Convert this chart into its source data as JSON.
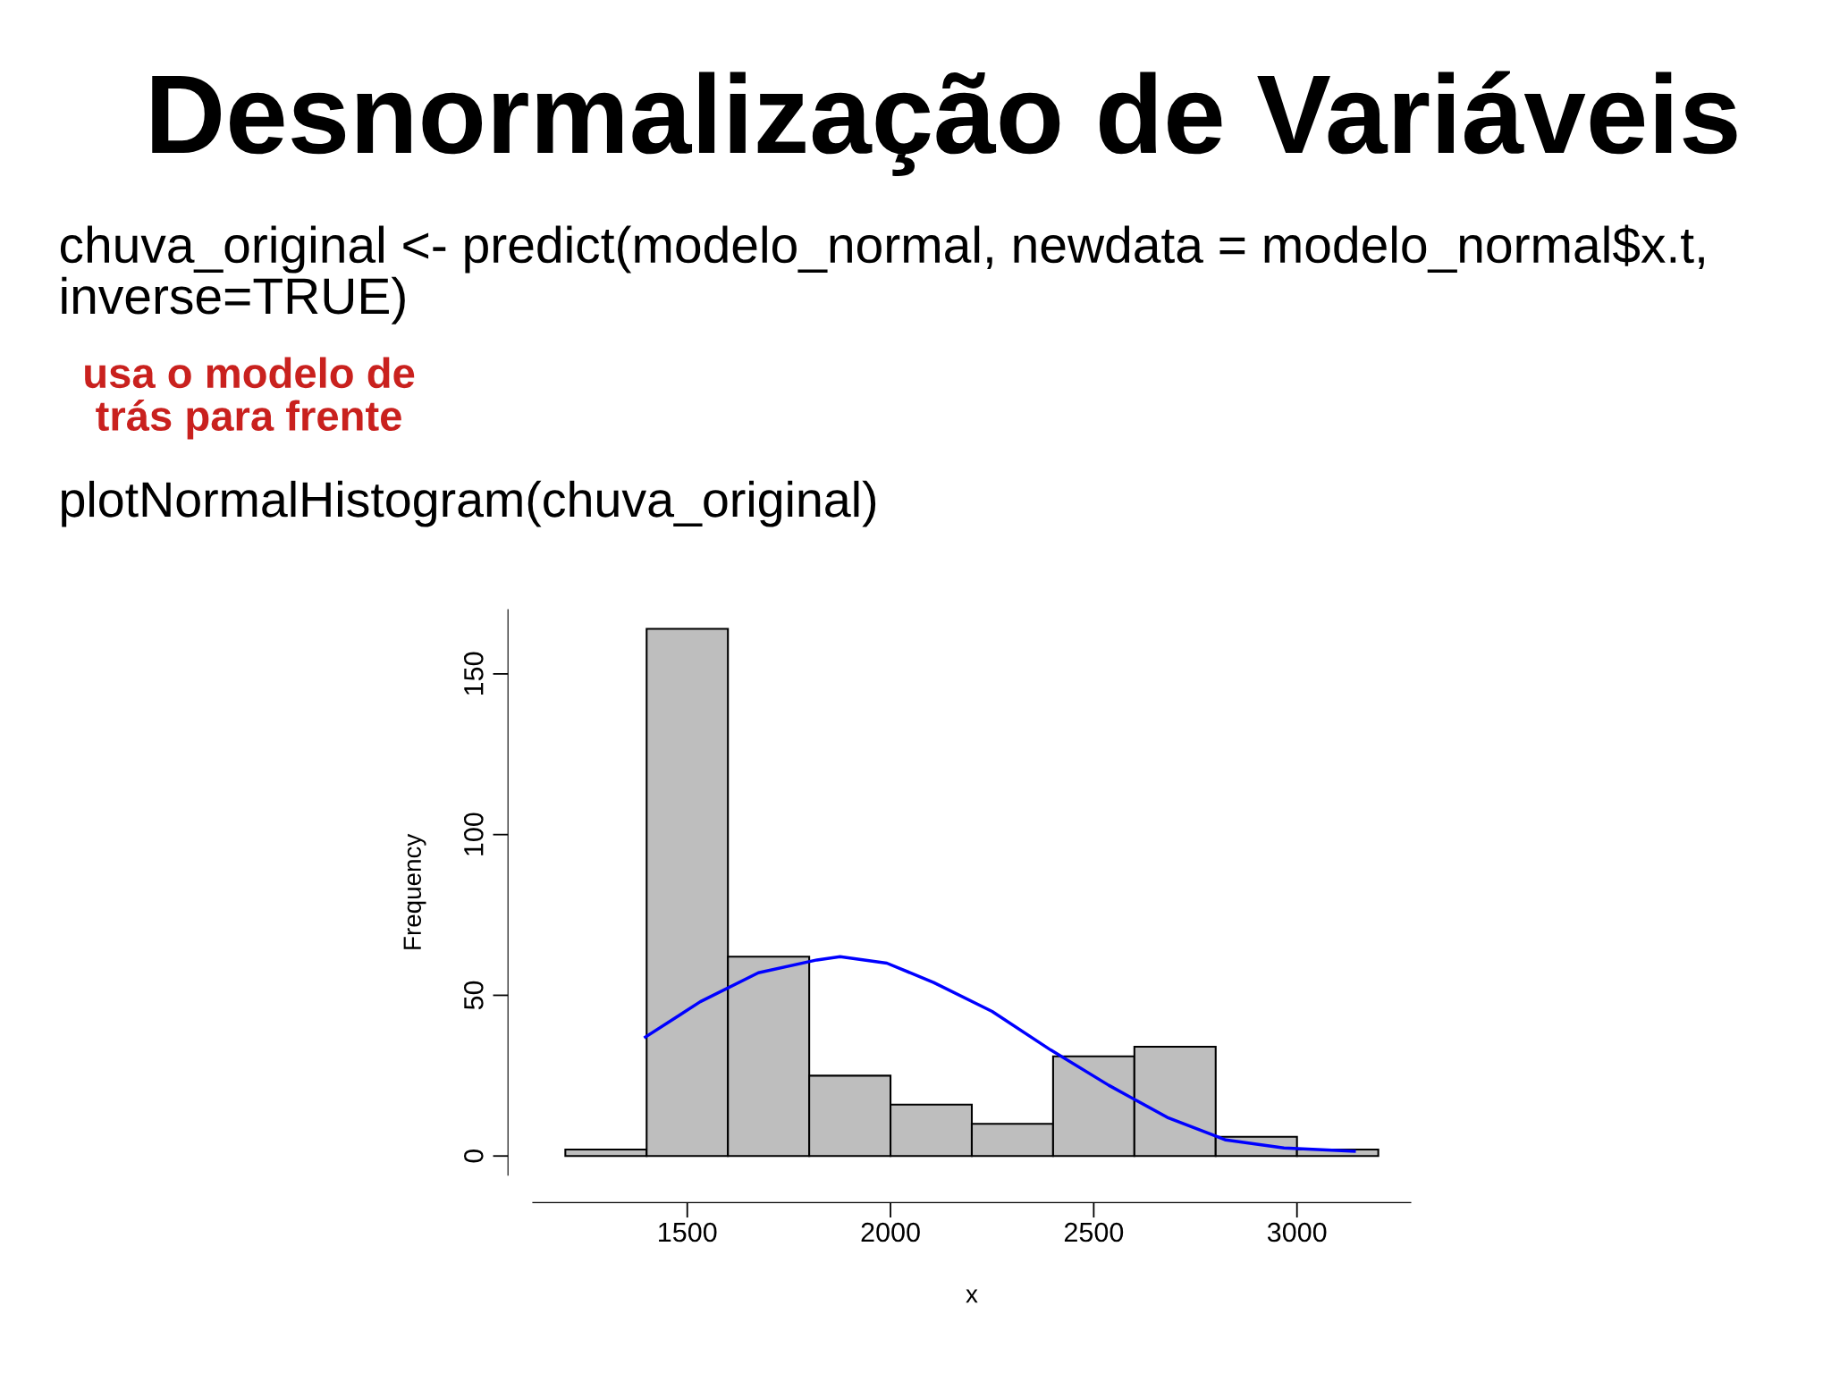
{
  "chart_data": {
    "type": "histogram",
    "title": "Desnormalização de Variáveis",
    "annotations": [
      "chuva_original <- predict(modelo_normal, newdata = modelo_normal$x.t,\ninverse=TRUE)",
      "usa o modelo de\ntrás para frente",
      "plotNormalHistogram(chuva_original)"
    ],
    "xlabel": "x",
    "ylabel": "Frequency",
    "series": [
      {
        "bins": [
          1200,
          1400,
          1600,
          1800,
          2000,
          2200,
          2400,
          2600,
          2800,
          3000,
          3200
        ],
        "values": [
          2,
          164,
          62,
          25,
          16,
          10,
          31,
          34,
          6,
          2
        ],
        "color": "#bebebe"
      },
      {
        "type": "line",
        "x": [
          1397,
          1532,
          1675,
          1819,
          1876,
          1991,
          2106,
          2250,
          2394,
          2537,
          2681,
          2825,
          2968,
          3141
        ],
        "values": [
          37,
          48,
          57,
          61,
          62,
          60,
          54,
          45,
          33,
          22,
          12,
          5,
          2.5,
          1.5
        ],
        "color": "#0000ff"
      }
    ],
    "xlim": [
      1120,
      3280
    ],
    "ylim": [
      -6,
      170
    ],
    "xticks": [
      1500,
      2000,
      2500,
      3000
    ],
    "yticks": [
      0,
      50,
      100,
      150
    ],
    "grid": false,
    "legend": false
  }
}
